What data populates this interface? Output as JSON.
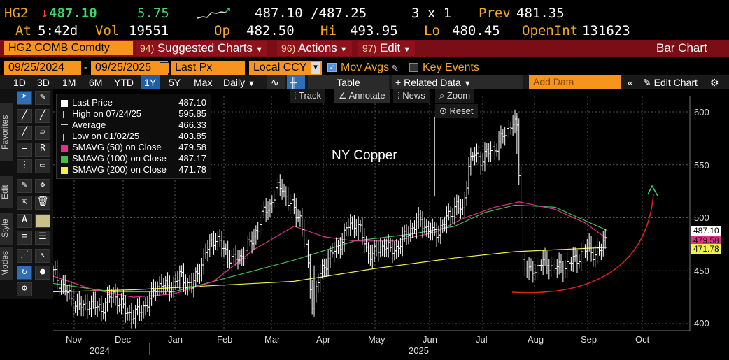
{
  "header": {
    "ticker": "HG2",
    "arrow": "↓",
    "last": "487.10",
    "change": "5.75",
    "bid_ask": "487.10 /487.25",
    "size": "3 x 1",
    "prev_label": "Prev",
    "prev": "481.35",
    "at_label": "At",
    "time": "5:42d",
    "vol_label": "Vol",
    "vol": "19551",
    "op_label": "Op",
    "open": "482.50",
    "hi_label": "Hi",
    "high": "493.95",
    "lo_label": "Lo",
    "low": "480.45",
    "oi_label": "OpenInt",
    "open_int": "131623"
  },
  "menubar": {
    "security": "HG2 COMB Comdty",
    "suggested_num": "94)",
    "suggested": "Suggested Charts",
    "actions_num": "96)",
    "actions": "Actions",
    "edit_num": "97)",
    "edit": "Edit",
    "chart_type": "Bar Chart"
  },
  "controls": {
    "start_date": "09/25/2024",
    "end_date": "09/25/2025",
    "field": "Last Px",
    "currency": "Local CCY",
    "mov_avgs": "Mov Avgs",
    "key_events": "Key Events"
  },
  "toolbar": {
    "ranges": [
      "1D",
      "3D",
      "1M",
      "6M",
      "YTD",
      "1Y",
      "5Y",
      "Max"
    ],
    "active_range": "1Y",
    "period": "Daily",
    "table": "Table",
    "related": "Related Data",
    "add_data_placeholder": "Add Data",
    "edit_chart": "Edit Chart"
  },
  "sidebar": {
    "tabs": [
      "Favorites",
      "Edit",
      "Style",
      "Modes"
    ]
  },
  "chart_tools": {
    "track": "Track",
    "annotate": "Annotate",
    "news": "News",
    "zoom": "Zoom",
    "reset": "Reset"
  },
  "legend": [
    {
      "label": "Last Price",
      "value": "487.10",
      "color": "#ffffff"
    },
    {
      "label": "High on 07/24/25",
      "value": "595.85",
      "color": ""
    },
    {
      "label": "Average",
      "value": "466.33",
      "color": ""
    },
    {
      "label": "Low on 01/02/25",
      "value": "403.85",
      "color": ""
    },
    {
      "label": "SMAVG (50)  on Close",
      "value": "479.58",
      "color": "#e0308c"
    },
    {
      "label": "SMAVG (100)  on Close",
      "value": "487.17",
      "color": "#3fbf4a"
    },
    {
      "label": "SMAVG (200)  on Close",
      "value": "471.78",
      "color": "#f2f04a"
    }
  ],
  "chart_data": {
    "type": "bar",
    "title": "NY Copper",
    "x_months": [
      "Nov",
      "Dec",
      "Jan",
      "Feb",
      "Mar",
      "Apr",
      "May",
      "Jun",
      "Jul",
      "Aug",
      "Sep",
      "Oct"
    ],
    "years": [
      "2024",
      "2025"
    ],
    "yticks": [
      400,
      450,
      500,
      550,
      600
    ],
    "ylim": [
      395,
      610
    ],
    "price_tags": [
      {
        "value": "487.10",
        "bg": "#ffffff",
        "fg": "#000000"
      },
      {
        "value": "479.58",
        "bg": "#e0308c",
        "fg": "#000000"
      },
      {
        "value": "471.78",
        "bg": "#f2f04a",
        "fg": "#000000"
      }
    ],
    "colors": {
      "price": "#ffffff",
      "sma50": "#e0308c",
      "sma100": "#3fbf4a",
      "sma200": "#f2f04a",
      "arrow": "#e0231f"
    },
    "close_series": [
      [
        0,
        448
      ],
      [
        3,
        440
      ],
      [
        6,
        432
      ],
      [
        9,
        423
      ],
      [
        12,
        418
      ],
      [
        15,
        415
      ],
      [
        18,
        420
      ],
      [
        21,
        416
      ],
      [
        24,
        414
      ],
      [
        27,
        422
      ],
      [
        30,
        428
      ],
      [
        33,
        420
      ],
      [
        36,
        412
      ],
      [
        39,
        408
      ],
      [
        42,
        410
      ],
      [
        45,
        416
      ],
      [
        48,
        422
      ],
      [
        51,
        435
      ],
      [
        54,
        438
      ],
      [
        57,
        433
      ],
      [
        60,
        438
      ],
      [
        63,
        445
      ],
      [
        66,
        440
      ],
      [
        69,
        435
      ],
      [
        72,
        448
      ],
      [
        75,
        462
      ],
      [
        78,
        475
      ],
      [
        81,
        482
      ],
      [
        84,
        472
      ],
      [
        87,
        465
      ],
      [
        90,
        460
      ],
      [
        93,
        462
      ],
      [
        96,
        470
      ],
      [
        99,
        478
      ],
      [
        102,
        492
      ],
      [
        105,
        505
      ],
      [
        108,
        512
      ],
      [
        111,
        525
      ],
      [
        114,
        530
      ],
      [
        117,
        515
      ],
      [
        120,
        508
      ],
      [
        123,
        500
      ],
      [
        126,
        470
      ],
      [
        129,
        420
      ],
      [
        132,
        440
      ],
      [
        135,
        455
      ],
      [
        138,
        465
      ],
      [
        141,
        470
      ],
      [
        144,
        480
      ],
      [
        147,
        492
      ],
      [
        150,
        495
      ],
      [
        153,
        488
      ],
      [
        156,
        470
      ],
      [
        159,
        465
      ],
      [
        162,
        470
      ],
      [
        165,
        475
      ],
      [
        168,
        468
      ],
      [
        171,
        472
      ],
      [
        174,
        478
      ],
      [
        177,
        488
      ],
      [
        180,
        492
      ],
      [
        183,
        498
      ],
      [
        186,
        490
      ],
      [
        189,
        485
      ],
      [
        192,
        488
      ],
      [
        195,
        495
      ],
      [
        198,
        505
      ],
      [
        201,
        512
      ],
      [
        204,
        505
      ],
      [
        207,
        550
      ],
      [
        210,
        560
      ],
      [
        213,
        555
      ],
      [
        216,
        560
      ],
      [
        219,
        565
      ],
      [
        222,
        570
      ],
      [
        225,
        580
      ],
      [
        228,
        590
      ],
      [
        231,
        585
      ],
      [
        234,
        460
      ],
      [
        237,
        448
      ],
      [
        240,
        452
      ],
      [
        243,
        458
      ],
      [
        246,
        456
      ],
      [
        249,
        455
      ],
      [
        252,
        452
      ],
      [
        255,
        455
      ],
      [
        258,
        458
      ],
      [
        261,
        462
      ],
      [
        264,
        468
      ],
      [
        267,
        472
      ],
      [
        270,
        465
      ],
      [
        273,
        470
      ],
      [
        276,
        487
      ]
    ]
  }
}
